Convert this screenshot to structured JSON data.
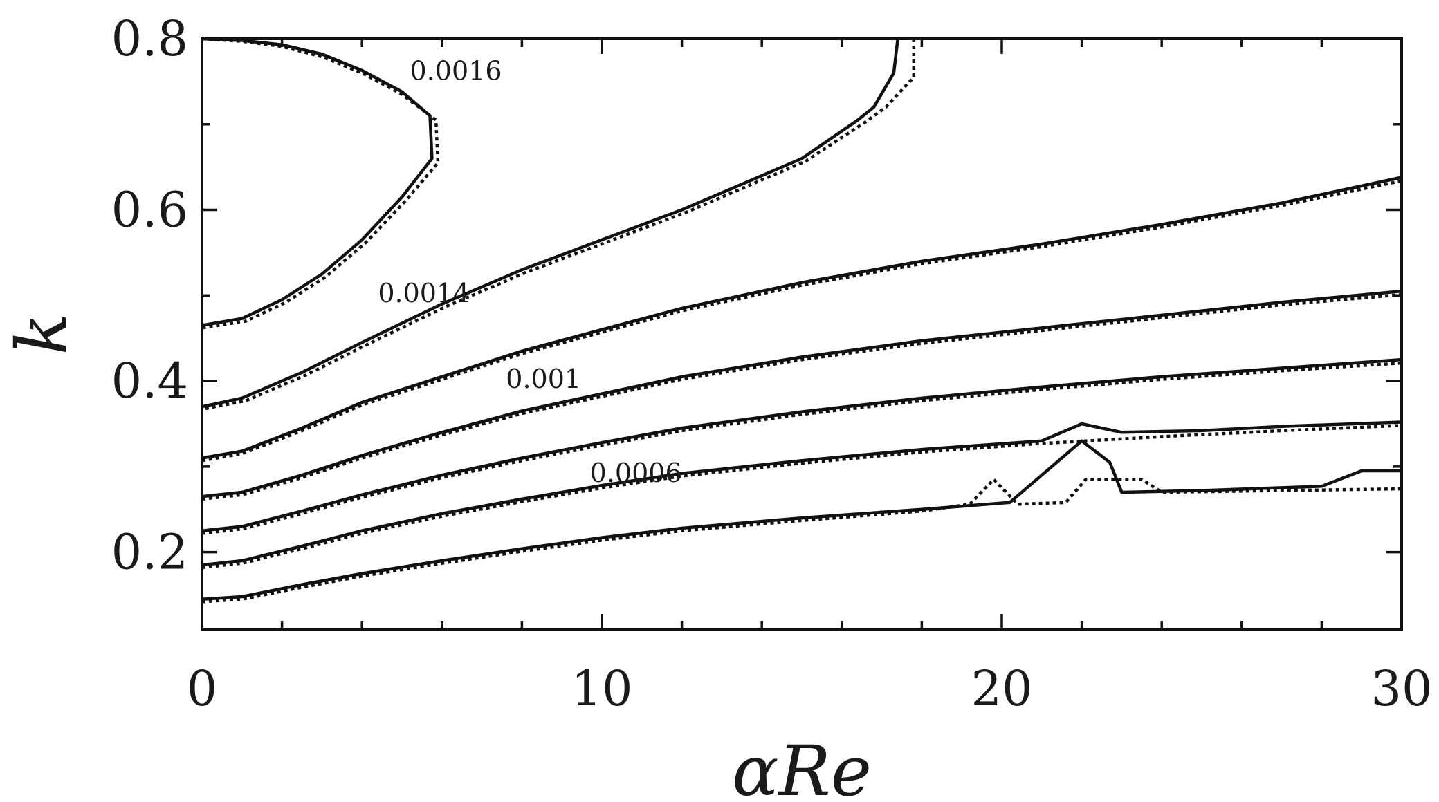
{
  "chart_data": {
    "type": "contour",
    "xlabel": "αRe",
    "ylabel": "k",
    "xlim": [
      0,
      30
    ],
    "ylim": [
      0.11,
      0.8
    ],
    "xticks": [
      0,
      10,
      20,
      30
    ],
    "yticks": [
      0.2,
      0.4,
      0.6,
      0.8
    ],
    "x_minor_ticks": [
      2,
      4,
      6,
      8,
      12,
      14,
      16,
      18,
      22,
      24,
      26,
      28
    ],
    "y_minor_ticks": [
      0.3,
      0.5,
      0.7
    ],
    "grid": false,
    "legend": "none",
    "contour_labels": [
      {
        "text": "0.0016",
        "x": 5.2,
        "y": 0.752
      },
      {
        "text": "0.0014",
        "x": 4.4,
        "y": 0.492
      },
      {
        "text": "0.001",
        "x": 7.6,
        "y": 0.392
      },
      {
        "text": "0.0006",
        "x": 9.7,
        "y": 0.282
      }
    ],
    "series": [
      {
        "style": "solid",
        "contours": [
          [
            [
              0,
              0.8
            ],
            [
              1,
              0.798
            ],
            [
              2,
              0.793
            ],
            [
              3,
              0.782
            ],
            [
              4,
              0.763
            ],
            [
              5,
              0.738
            ],
            [
              5.7,
              0.71
            ],
            [
              5.75,
              0.66
            ],
            [
              5,
              0.615
            ],
            [
              4,
              0.565
            ],
            [
              3,
              0.525
            ],
            [
              2,
              0.495
            ],
            [
              1,
              0.473
            ],
            [
              0,
              0.465
            ]
          ],
          [
            [
              17.4,
              0.8
            ],
            [
              17.3,
              0.76
            ],
            [
              16.8,
              0.72
            ],
            [
              16.4,
              0.705
            ],
            [
              15,
              0.66
            ],
            [
              13.5,
              0.63
            ],
            [
              12,
              0.6
            ],
            [
              10,
              0.565
            ],
            [
              8,
              0.53
            ],
            [
              6,
              0.49
            ],
            [
              4,
              0.445
            ],
            [
              2.5,
              0.41
            ],
            [
              1,
              0.38
            ],
            [
              0,
              0.37
            ]
          ],
          [
            [
              0,
              0.31
            ],
            [
              1,
              0.318
            ],
            [
              2.5,
              0.345
            ],
            [
              4,
              0.375
            ],
            [
              6,
              0.405
            ],
            [
              8,
              0.435
            ],
            [
              10,
              0.46
            ],
            [
              12,
              0.485
            ],
            [
              15,
              0.515
            ],
            [
              18,
              0.54
            ],
            [
              21,
              0.56
            ],
            [
              24,
              0.583
            ],
            [
              27,
              0.608
            ],
            [
              30,
              0.638
            ]
          ],
          [
            [
              0,
              0.265
            ],
            [
              1,
              0.27
            ],
            [
              2.5,
              0.29
            ],
            [
              4,
              0.313
            ],
            [
              6,
              0.34
            ],
            [
              8,
              0.365
            ],
            [
              10,
              0.385
            ],
            [
              12,
              0.405
            ],
            [
              15,
              0.428
            ],
            [
              18,
              0.447
            ],
            [
              21,
              0.462
            ],
            [
              24,
              0.477
            ],
            [
              27,
              0.492
            ],
            [
              30,
              0.505
            ]
          ],
          [
            [
              0,
              0.225
            ],
            [
              1,
              0.23
            ],
            [
              2.5,
              0.248
            ],
            [
              4,
              0.267
            ],
            [
              6,
              0.29
            ],
            [
              8,
              0.31
            ],
            [
              10,
              0.328
            ],
            [
              12,
              0.345
            ],
            [
              15,
              0.364
            ],
            [
              18,
              0.38
            ],
            [
              21,
              0.393
            ],
            [
              24,
              0.405
            ],
            [
              27,
              0.415
            ],
            [
              30,
              0.425
            ]
          ],
          [
            [
              0,
              0.185
            ],
            [
              1,
              0.19
            ],
            [
              2.5,
              0.207
            ],
            [
              4,
              0.225
            ],
            [
              6,
              0.245
            ],
            [
              8,
              0.262
            ],
            [
              10,
              0.278
            ],
            [
              12,
              0.292
            ],
            [
              15,
              0.307
            ],
            [
              18,
              0.32
            ],
            [
              21,
              0.33
            ],
            [
              22,
              0.35
            ],
            [
              23,
              0.34
            ],
            [
              25,
              0.342
            ],
            [
              27,
              0.347
            ],
            [
              30,
              0.352
            ]
          ],
          [
            [
              0,
              0.145
            ],
            [
              1,
              0.148
            ],
            [
              2.5,
              0.162
            ],
            [
              4,
              0.175
            ],
            [
              6,
              0.19
            ],
            [
              8,
              0.204
            ],
            [
              10,
              0.217
            ],
            [
              12,
              0.228
            ],
            [
              15,
              0.24
            ],
            [
              18,
              0.25
            ],
            [
              20.2,
              0.258
            ],
            [
              21,
              0.29
            ],
            [
              22,
              0.33
            ],
            [
              22.7,
              0.305
            ],
            [
              23,
              0.27
            ],
            [
              25,
              0.272
            ],
            [
              28,
              0.277
            ],
            [
              29,
              0.295
            ],
            [
              30,
              0.295
            ]
          ]
        ]
      },
      {
        "style": "dotted",
        "contours": [
          [
            [
              0,
              0.8
            ],
            [
              1,
              0.797
            ],
            [
              2,
              0.791
            ],
            [
              3,
              0.779
            ],
            [
              4,
              0.76
            ],
            [
              5,
              0.735
            ],
            [
              5.85,
              0.705
            ],
            [
              5.9,
              0.655
            ],
            [
              5.1,
              0.611
            ],
            [
              4.1,
              0.562
            ],
            [
              3.1,
              0.522
            ],
            [
              2.1,
              0.492
            ],
            [
              1.1,
              0.47
            ],
            [
              0,
              0.462
            ]
          ],
          [
            [
              17.8,
              0.8
            ],
            [
              17.8,
              0.755
            ],
            [
              17.1,
              0.72
            ],
            [
              16.6,
              0.703
            ],
            [
              15.1,
              0.657
            ],
            [
              13.6,
              0.627
            ],
            [
              12.1,
              0.597
            ],
            [
              10.1,
              0.562
            ],
            [
              8.1,
              0.527
            ],
            [
              6.1,
              0.487
            ],
            [
              4.1,
              0.442
            ],
            [
              2.6,
              0.407
            ],
            [
              1.1,
              0.377
            ],
            [
              0,
              0.367
            ]
          ],
          [
            [
              0,
              0.307
            ],
            [
              1,
              0.315
            ],
            [
              2.5,
              0.342
            ],
            [
              4,
              0.372
            ],
            [
              6,
              0.402
            ],
            [
              8,
              0.432
            ],
            [
              10,
              0.457
            ],
            [
              12,
              0.482
            ],
            [
              15,
              0.512
            ],
            [
              18,
              0.537
            ],
            [
              21,
              0.557
            ],
            [
              24,
              0.58
            ],
            [
              27,
              0.605
            ],
            [
              30,
              0.634
            ]
          ],
          [
            [
              0,
              0.262
            ],
            [
              1,
              0.267
            ],
            [
              2.5,
              0.287
            ],
            [
              4,
              0.31
            ],
            [
              6,
              0.337
            ],
            [
              8,
              0.362
            ],
            [
              10,
              0.382
            ],
            [
              12,
              0.402
            ],
            [
              15,
              0.425
            ],
            [
              18,
              0.444
            ],
            [
              21,
              0.459
            ],
            [
              24,
              0.474
            ],
            [
              27,
              0.489
            ],
            [
              30,
              0.501
            ]
          ],
          [
            [
              0,
              0.222
            ],
            [
              1,
              0.227
            ],
            [
              2.5,
              0.245
            ],
            [
              4,
              0.264
            ],
            [
              6,
              0.287
            ],
            [
              8,
              0.307
            ],
            [
              10,
              0.325
            ],
            [
              12,
              0.342
            ],
            [
              15,
              0.361
            ],
            [
              18,
              0.377
            ],
            [
              21,
              0.39
            ],
            [
              24,
              0.402
            ],
            [
              27,
              0.412
            ],
            [
              30,
              0.421
            ]
          ],
          [
            [
              0,
              0.182
            ],
            [
              1,
              0.187
            ],
            [
              2.5,
              0.204
            ],
            [
              4,
              0.222
            ],
            [
              6,
              0.242
            ],
            [
              8,
              0.259
            ],
            [
              10,
              0.275
            ],
            [
              12,
              0.289
            ],
            [
              15,
              0.304
            ],
            [
              18,
              0.317
            ],
            [
              21,
              0.327
            ],
            [
              24,
              0.335
            ],
            [
              27,
              0.342
            ],
            [
              30,
              0.348
            ]
          ],
          [
            [
              0,
              0.142
            ],
            [
              1,
              0.145
            ],
            [
              2.5,
              0.159
            ],
            [
              4,
              0.172
            ],
            [
              6,
              0.187
            ],
            [
              8,
              0.201
            ],
            [
              10,
              0.214
            ],
            [
              12,
              0.225
            ],
            [
              15,
              0.237
            ],
            [
              18,
              0.248
            ],
            [
              19.2,
              0.256
            ],
            [
              19.8,
              0.285
            ],
            [
              20.4,
              0.256
            ],
            [
              21.6,
              0.258
            ],
            [
              22.1,
              0.285
            ],
            [
              23.5,
              0.285
            ],
            [
              24,
              0.27
            ],
            [
              27,
              0.272
            ],
            [
              30,
              0.274
            ]
          ]
        ]
      }
    ]
  }
}
